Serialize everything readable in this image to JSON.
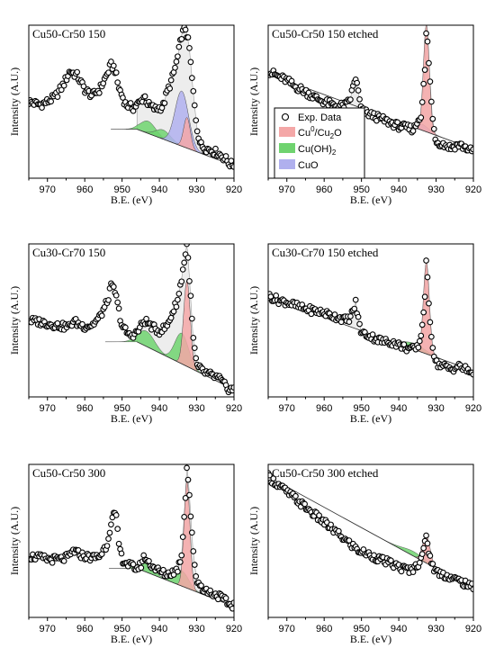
{
  "figure": {
    "xaxis_label": "B.E. (eV)",
    "yaxis_label": "Intensity (A.U.)"
  },
  "legend": {
    "placement": "inside panel 2, left of peak",
    "entries": [
      {
        "key": "exp",
        "label": "Exp. Data",
        "marker": "open-circle"
      },
      {
        "key": "cu0",
        "label_main": "Cu",
        "label_sup": "0",
        "label_mid": "/Cu",
        "label_sub": "2",
        "label_end": "O",
        "color": "#f4a7a7"
      },
      {
        "key": "cuoh",
        "label_main": "Cu(OH)",
        "label_sub": "2",
        "color": "#7ee07e"
      },
      {
        "key": "cuo",
        "label_main": "CuO",
        "color": "#b8b8f0"
      }
    ]
  },
  "colors": {
    "cu0": "#f4a7a7",
    "cuoh": "#6fd36f",
    "cuo": "#b0b0ee",
    "envelope": "#e6e6e6",
    "points": "#000000"
  },
  "chart_data": [
    {
      "type": "scatter",
      "title": "Cu50-Cr50 150",
      "xlim": [
        975,
        920
      ],
      "ylim": [
        0,
        100
      ],
      "xticks": [
        970,
        960,
        950,
        940,
        930,
        920
      ],
      "grid": false,
      "baseline": [
        [
          946,
          32
        ],
        [
          921,
          9
        ]
      ],
      "spectrum": [
        [
          975,
          50
        ],
        [
          972,
          48
        ],
        [
          970,
          50
        ],
        [
          968,
          53
        ],
        [
          966,
          60
        ],
        [
          964,
          70
        ],
        [
          962,
          67
        ],
        [
          960,
          58
        ],
        [
          958,
          54
        ],
        [
          956,
          58
        ],
        [
          954,
          68
        ],
        [
          953,
          74
        ],
        [
          952,
          72
        ],
        [
          951,
          60
        ],
        [
          949,
          48
        ],
        [
          947,
          46
        ],
        [
          945,
          50
        ],
        [
          944,
          54
        ],
        [
          943,
          48
        ],
        [
          941,
          45
        ],
        [
          940,
          46
        ],
        [
          939,
          47
        ],
        [
          938,
          56
        ],
        [
          937,
          62
        ],
        [
          936,
          70
        ],
        [
          935,
          80
        ],
        [
          934,
          94
        ],
        [
          933,
          98
        ],
        [
          932,
          86
        ],
        [
          931,
          58
        ],
        [
          930,
          34
        ],
        [
          929,
          22
        ],
        [
          928,
          20
        ],
        [
          926,
          18
        ],
        [
          924,
          16
        ],
        [
          922,
          12
        ],
        [
          921,
          9
        ]
      ],
      "components": [
        {
          "key": "cuoh",
          "center": 943,
          "height": 8,
          "width": 2.0
        },
        {
          "key": "cuoh",
          "center": 939,
          "height": 6,
          "width": 2.0
        },
        {
          "key": "cuo",
          "center": 934,
          "height": 36,
          "width": 1.8
        },
        {
          "key": "cu0",
          "center": 932.6,
          "height": 20,
          "width": 0.9
        }
      ]
    },
    {
      "type": "scatter",
      "title": "Cu50-Cr50 150 etched",
      "xlim": [
        975,
        920
      ],
      "ylim": [
        0,
        100
      ],
      "xticks": [
        970,
        960,
        950,
        940,
        930,
        920
      ],
      "grid": false,
      "baseline": [
        [
          975,
          68
        ],
        [
          921,
          20
        ]
      ],
      "spectrum": [
        [
          975,
          70
        ],
        [
          972,
          66
        ],
        [
          970,
          64
        ],
        [
          968,
          60
        ],
        [
          966,
          58
        ],
        [
          964,
          55
        ],
        [
          962,
          52
        ],
        [
          960,
          50
        ],
        [
          958,
          48
        ],
        [
          956,
          47
        ],
        [
          954,
          48
        ],
        [
          953,
          52
        ],
        [
          952,
          62
        ],
        [
          951.5,
          66
        ],
        [
          951,
          58
        ],
        [
          950,
          44
        ],
        [
          948,
          42
        ],
        [
          946,
          40
        ],
        [
          944,
          38
        ],
        [
          942,
          36
        ],
        [
          940,
          34
        ],
        [
          938,
          33
        ],
        [
          936,
          32
        ],
        [
          934,
          42
        ],
        [
          933,
          70
        ],
        [
          932.6,
          98
        ],
        [
          932,
          78
        ],
        [
          931,
          40
        ],
        [
          930,
          24
        ],
        [
          928,
          22
        ],
        [
          926,
          20
        ],
        [
          924,
          22
        ],
        [
          922,
          20
        ],
        [
          921,
          18
        ]
      ],
      "components": [
        {
          "key": "cuo",
          "center": 934,
          "height": 4,
          "width": 2.0
        },
        {
          "key": "cu0",
          "center": 932.6,
          "height": 70,
          "width": 0.8
        }
      ]
    },
    {
      "type": "scatter",
      "title": "Cu30-Cr70 150",
      "xlim": [
        975,
        920
      ],
      "ylim": [
        0,
        100
      ],
      "xticks": [
        970,
        960,
        950,
        940,
        930,
        920
      ],
      "grid": false,
      "baseline": [
        [
          946,
          36
        ],
        [
          921,
          6
        ]
      ],
      "spectrum": [
        [
          975,
          50
        ],
        [
          972,
          49
        ],
        [
          970,
          48
        ],
        [
          968,
          47
        ],
        [
          966,
          46
        ],
        [
          964,
          46
        ],
        [
          963,
          50
        ],
        [
          962,
          48
        ],
        [
          960,
          46
        ],
        [
          958,
          47
        ],
        [
          956,
          52
        ],
        [
          954,
          62
        ],
        [
          953,
          72
        ],
        [
          952,
          70
        ],
        [
          951,
          58
        ],
        [
          950,
          46
        ],
        [
          948,
          40
        ],
        [
          946,
          42
        ],
        [
          945,
          46
        ],
        [
          944,
          50
        ],
        [
          943,
          48
        ],
        [
          941,
          44
        ],
        [
          940,
          43
        ],
        [
          938,
          46
        ],
        [
          937,
          52
        ],
        [
          936,
          58
        ],
        [
          935,
          64
        ],
        [
          934,
          78
        ],
        [
          933,
          94
        ],
        [
          932.6,
          100
        ],
        [
          932,
          80
        ],
        [
          931,
          40
        ],
        [
          930,
          20
        ],
        [
          928,
          16
        ],
        [
          926,
          14
        ],
        [
          924,
          12
        ],
        [
          922,
          6
        ],
        [
          921,
          5
        ]
      ],
      "components": [
        {
          "key": "cuoh",
          "center": 943.5,
          "height": 10,
          "width": 2.2
        },
        {
          "key": "cuoh",
          "center": 934,
          "height": 20,
          "width": 1.8
        },
        {
          "key": "cu0",
          "center": 932.6,
          "height": 56,
          "width": 0.9
        }
      ]
    },
    {
      "type": "scatter",
      "title": "Cu30-Cr70 150 etched",
      "xlim": [
        975,
        920
      ],
      "ylim": [
        0,
        100
      ],
      "xticks": [
        970,
        960,
        950,
        940,
        930,
        920
      ],
      "grid": false,
      "baseline": [
        [
          975,
          65
        ],
        [
          921,
          18
        ]
      ],
      "spectrum": [
        [
          975,
          66
        ],
        [
          972,
          63
        ],
        [
          970,
          62
        ],
        [
          968,
          60
        ],
        [
          966,
          58
        ],
        [
          964,
          57
        ],
        [
          962,
          56
        ],
        [
          960,
          55
        ],
        [
          958,
          53
        ],
        [
          956,
          52
        ],
        [
          954,
          50
        ],
        [
          953,
          52
        ],
        [
          952,
          58
        ],
        [
          951.5,
          62
        ],
        [
          951,
          52
        ],
        [
          950,
          42
        ],
        [
          948,
          40
        ],
        [
          946,
          38
        ],
        [
          944,
          36
        ],
        [
          942,
          36
        ],
        [
          940,
          34
        ],
        [
          938,
          32
        ],
        [
          936,
          31
        ],
        [
          935,
          32
        ],
        [
          934,
          40
        ],
        [
          933,
          66
        ],
        [
          932.6,
          90
        ],
        [
          932,
          62
        ],
        [
          931,
          34
        ],
        [
          930,
          22
        ],
        [
          928,
          20
        ],
        [
          926,
          18
        ],
        [
          924,
          20
        ],
        [
          922,
          18
        ],
        [
          921,
          16
        ]
      ],
      "components": [
        {
          "key": "cuoh",
          "center": 936,
          "height": 4,
          "width": 3.0
        },
        {
          "key": "cu0",
          "center": 932.6,
          "height": 60,
          "width": 0.8
        }
      ]
    },
    {
      "type": "scatter",
      "title": "Cu50-Cr50 300",
      "xlim": [
        975,
        920
      ],
      "ylim": [
        0,
        100
      ],
      "xticks": [
        970,
        960,
        950,
        940,
        930,
        920
      ],
      "grid": false,
      "baseline": [
        [
          946,
          32
        ],
        [
          921,
          8
        ]
      ],
      "spectrum": [
        [
          975,
          40
        ],
        [
          972,
          39
        ],
        [
          970,
          38
        ],
        [
          968,
          38
        ],
        [
          966,
          38
        ],
        [
          964,
          40
        ],
        [
          963,
          44
        ],
        [
          962,
          42
        ],
        [
          960,
          40
        ],
        [
          958,
          39
        ],
        [
          956,
          40
        ],
        [
          954,
          48
        ],
        [
          953,
          62
        ],
        [
          952,
          68
        ],
        [
          951.5,
          64
        ],
        [
          951,
          50
        ],
        [
          950,
          38
        ],
        [
          948,
          34
        ],
        [
          946,
          32
        ],
        [
          945,
          34
        ],
        [
          944,
          40
        ],
        [
          943,
          36
        ],
        [
          941,
          32
        ],
        [
          940,
          30
        ],
        [
          938,
          28
        ],
        [
          936,
          30
        ],
        [
          935,
          32
        ],
        [
          934,
          42
        ],
        [
          933,
          80
        ],
        [
          932.6,
          100
        ],
        [
          932,
          82
        ],
        [
          931,
          44
        ],
        [
          930,
          24
        ],
        [
          928,
          18
        ],
        [
          926,
          16
        ],
        [
          924,
          14
        ],
        [
          922,
          10
        ],
        [
          921,
          8
        ]
      ],
      "components": [
        {
          "key": "cuoh",
          "center": 943.5,
          "height": 6,
          "width": 2.0
        },
        {
          "key": "cuoh",
          "center": 934,
          "height": 10,
          "width": 1.8
        },
        {
          "key": "cu0",
          "center": 932.6,
          "height": 70,
          "width": 0.8
        }
      ]
    },
    {
      "type": "scatter",
      "title": "Cu50-Cr50 300 etched",
      "xlim": [
        975,
        920
      ],
      "ylim": [
        0,
        100
      ],
      "xticks": [
        970,
        960,
        950,
        940,
        930,
        920
      ],
      "grid": false,
      "baseline": [
        [
          975,
          92
        ],
        [
          921,
          20
        ]
      ],
      "spectrum": [
        [
          975,
          92
        ],
        [
          973,
          88
        ],
        [
          971,
          84
        ],
        [
          969,
          80
        ],
        [
          967,
          76
        ],
        [
          965,
          72
        ],
        [
          963,
          68
        ],
        [
          961,
          64
        ],
        [
          959,
          60
        ],
        [
          957,
          56
        ],
        [
          955,
          52
        ],
        [
          953,
          48
        ],
        [
          951,
          44
        ],
        [
          949,
          42
        ],
        [
          947,
          40
        ],
        [
          945,
          38
        ],
        [
          943,
          36
        ],
        [
          941,
          34
        ],
        [
          939,
          32
        ],
        [
          937,
          31
        ],
        [
          936,
          32
        ],
        [
          935,
          34
        ],
        [
          934,
          40
        ],
        [
          933,
          48
        ],
        [
          932.6,
          52
        ],
        [
          932,
          44
        ],
        [
          931,
          34
        ],
        [
          930,
          30
        ],
        [
          928,
          28
        ],
        [
          926,
          26
        ],
        [
          924,
          24
        ],
        [
          922,
          22
        ],
        [
          921,
          20
        ]
      ],
      "components": [
        {
          "key": "cuoh",
          "center": 936,
          "height": 3,
          "width": 3.0
        },
        {
          "key": "cu0",
          "center": 932.6,
          "height": 18,
          "width": 1.0
        }
      ]
    }
  ]
}
